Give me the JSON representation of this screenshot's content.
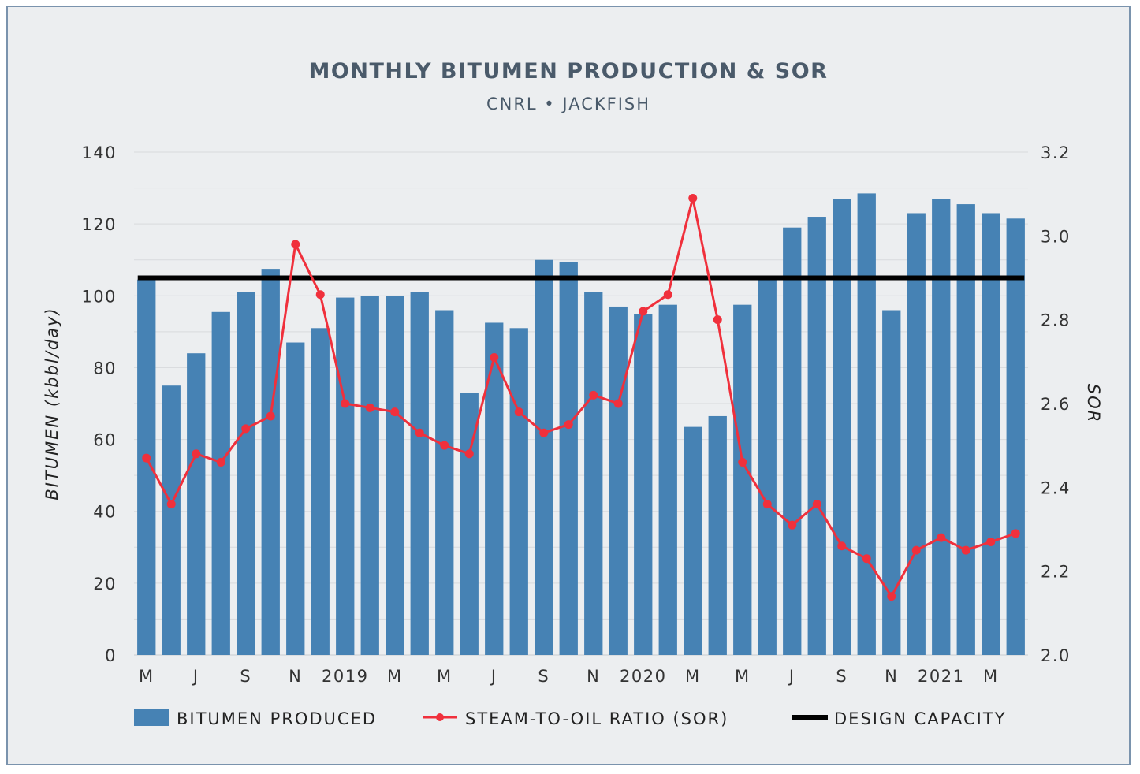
{
  "chart_data": {
    "type": "bar",
    "title": "MONTHLY BITUMEN PRODUCTION & SOR",
    "subtitle": "CNRL • JACKFISH",
    "ylabel": "BITUMEN (kbbl/day)",
    "y2label": "SOR",
    "ylim": [
      0,
      140
    ],
    "y2lim": [
      2.0,
      3.2
    ],
    "yticks": [
      "0",
      "20",
      "40",
      "60",
      "80",
      "100",
      "120",
      "140"
    ],
    "y2ticks": [
      "2.0",
      "2.2",
      "2.4",
      "2.6",
      "2.8",
      "3.0",
      "3.2"
    ],
    "categories": [
      "M",
      "",
      "J",
      "",
      "S",
      "",
      "N",
      "",
      "2019",
      "",
      "M",
      "",
      "M",
      "",
      "J",
      "",
      "S",
      "",
      "N",
      "",
      "2020",
      "",
      "M",
      "",
      "M",
      "",
      "J",
      "",
      "S",
      "",
      "N",
      "",
      "2021",
      "",
      "M",
      ""
    ],
    "series": [
      {
        "name": "BITUMEN PRODUCED",
        "type": "bar",
        "color": "#4682b4",
        "values": [
          104.5,
          75,
          84,
          95.5,
          101,
          107.5,
          87,
          91,
          99.5,
          100,
          100,
          101,
          96,
          73,
          92.5,
          91,
          110,
          109.5,
          101,
          97,
          95,
          97.5,
          63.5,
          66.5,
          97.5,
          105,
          119,
          122,
          127,
          128.5,
          96,
          123,
          127,
          125.5,
          123,
          121.5
        ]
      },
      {
        "name": "STEAM-TO-OIL RATIO (SOR)",
        "type": "line",
        "axis": "right",
        "color": "#f0303c",
        "values": [
          2.47,
          2.36,
          2.48,
          2.46,
          2.54,
          2.57,
          2.98,
          2.86,
          2.6,
          2.59,
          2.58,
          2.53,
          2.5,
          2.48,
          2.71,
          2.58,
          2.53,
          2.55,
          2.62,
          2.6,
          2.82,
          2.86,
          3.09,
          2.8,
          2.46,
          2.36,
          2.31,
          2.36,
          2.26,
          2.23,
          2.14,
          2.25,
          2.28,
          2.25,
          2.27,
          2.29
        ]
      },
      {
        "name": "DESIGN CAPACITY",
        "type": "hline",
        "color": "#000000",
        "value": 105
      }
    ],
    "grid": true,
    "legend_position": "bottom"
  }
}
